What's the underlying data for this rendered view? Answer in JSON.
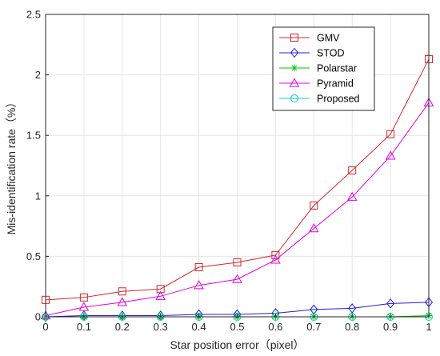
{
  "chart_data": {
    "type": "line",
    "title": "",
    "xlabel": "Star position error（pixel）",
    "ylabel": "Mis-identification rate（%）",
    "xlim": [
      0,
      1
    ],
    "ylim": [
      0,
      2.5
    ],
    "xticks": [
      0,
      0.1,
      0.2,
      0.3,
      0.4,
      0.5,
      0.6,
      0.7,
      0.8,
      0.9,
      1
    ],
    "xtick_labels": [
      "0",
      "0.1",
      "0.2",
      "0.3",
      "0.4",
      "0.5",
      "0.6",
      "0.7",
      "0.8",
      "0.9",
      "1"
    ],
    "yticks": [
      0,
      0.5,
      1,
      1.5,
      2,
      2.5
    ],
    "ytick_labels": [
      "0",
      "0.5",
      "1",
      "1.5",
      "2",
      "2.5"
    ],
    "grid": true,
    "legend_position": "top-right",
    "x": [
      0,
      0.1,
      0.2,
      0.3,
      0.4,
      0.5,
      0.6,
      0.7,
      0.8,
      0.9,
      1
    ],
    "series": [
      {
        "name": "GMV",
        "color": "#d62728",
        "marker": "square",
        "values": [
          0.14,
          0.16,
          0.21,
          0.23,
          0.41,
          0.45,
          0.51,
          0.92,
          1.21,
          1.51,
          2.13
        ]
      },
      {
        "name": "STOD",
        "color": "#1f1fd6",
        "marker": "diamond",
        "values": [
          0.0,
          0.01,
          0.01,
          0.01,
          0.02,
          0.02,
          0.03,
          0.06,
          0.07,
          0.11,
          0.12
        ]
      },
      {
        "name": "Polarstar",
        "color": "#00c800",
        "marker": "asterisk",
        "values": [
          0.0,
          0.0,
          0.0,
          0.0,
          0.0,
          0.0,
          0.0,
          0.0,
          0.0,
          0.0,
          0.01
        ]
      },
      {
        "name": "Pyramid",
        "color": "#e000e0",
        "marker": "triangle",
        "values": [
          0.01,
          0.08,
          0.12,
          0.17,
          0.26,
          0.31,
          0.47,
          0.73,
          0.99,
          1.33,
          1.77
        ]
      },
      {
        "name": "Proposed",
        "color": "#00cccc",
        "marker": "circle",
        "values": [
          0.0,
          0.0,
          0.0,
          0.0,
          0.0,
          0.0,
          0.0,
          0.0,
          0.0,
          0.0,
          0.0
        ]
      }
    ]
  }
}
